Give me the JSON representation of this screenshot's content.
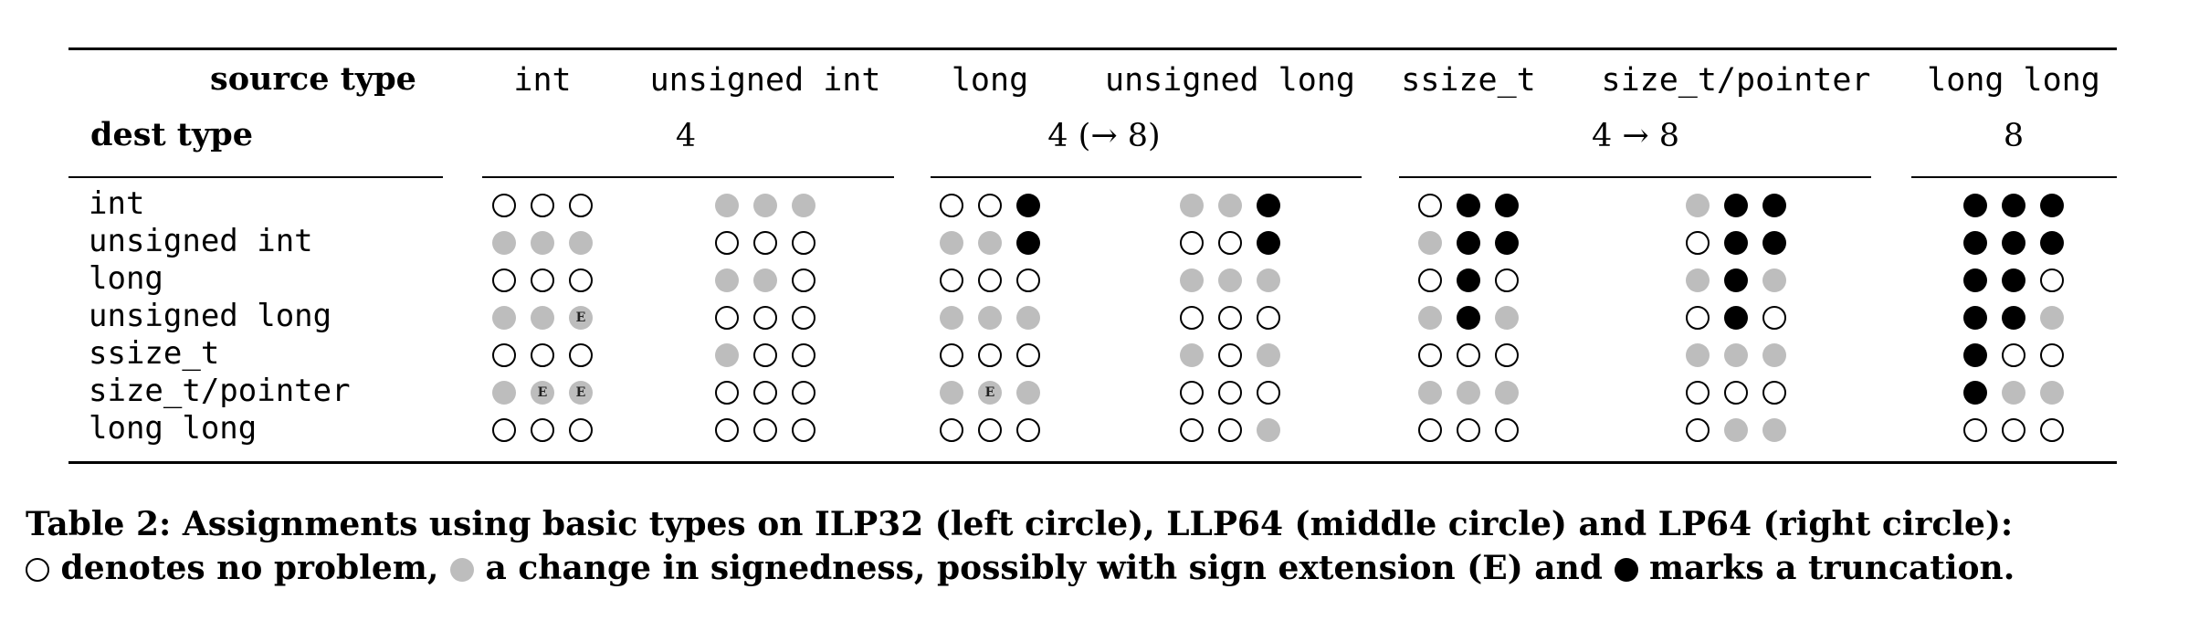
{
  "table": {
    "source_type_label": "source type",
    "dest_type_label": "dest type",
    "source_types": [
      "int",
      "unsigned int",
      "long",
      "unsigned long",
      "ssize_t",
      "size_t/pointer",
      "long long"
    ],
    "group_sizes": [
      "4",
      "4 (→ 8)",
      "4 → 8",
      "8"
    ],
    "dest_types": [
      "int",
      "unsigned int",
      "long",
      "unsigned long",
      "ssize_t",
      "size_t/pointer",
      "long long"
    ],
    "cells": [
      [
        "OOO",
        "SSS",
        "OOT",
        "SST",
        "OTT",
        "STT",
        "TTT"
      ],
      [
        "SSS",
        "OOO",
        "SST",
        "OOT",
        "STT",
        "OTT",
        "TTT"
      ],
      [
        "OOO",
        "SSO",
        "OOO",
        "SSS",
        "OTO",
        "STS",
        "TTO"
      ],
      [
        "SSE",
        "OOO",
        "SSS",
        "OOO",
        "STS",
        "OTO",
        "TTS"
      ],
      [
        "OOO",
        "SOO",
        "OOO",
        "SOS",
        "OOO",
        "SSS",
        "TOO"
      ],
      [
        "SEE",
        "OOO",
        "SES",
        "OOO",
        "SSS",
        "OOO",
        "TSS"
      ],
      [
        "OOO",
        "OOO",
        "OOO",
        "OOS",
        "OOO",
        "OSS",
        "OOO"
      ]
    ],
    "legend_codes": {
      "O": "no problem",
      "S": "change in signedness",
      "E": "sign extension",
      "T": "truncation"
    },
    "colors": {
      "sign": "#bdbdbd",
      "trunc": "#000000",
      "none_border": "#000000"
    }
  },
  "caption": {
    "part1": "Table 2: Assignments using basic types on ILP32 (left circle), LLP64 (middle circle) and LP64 (right circle):",
    "part2": "denotes no problem,",
    "part3": "a change in signedness, possibly with sign extension (E) and",
    "part4": "marks a truncation."
  }
}
